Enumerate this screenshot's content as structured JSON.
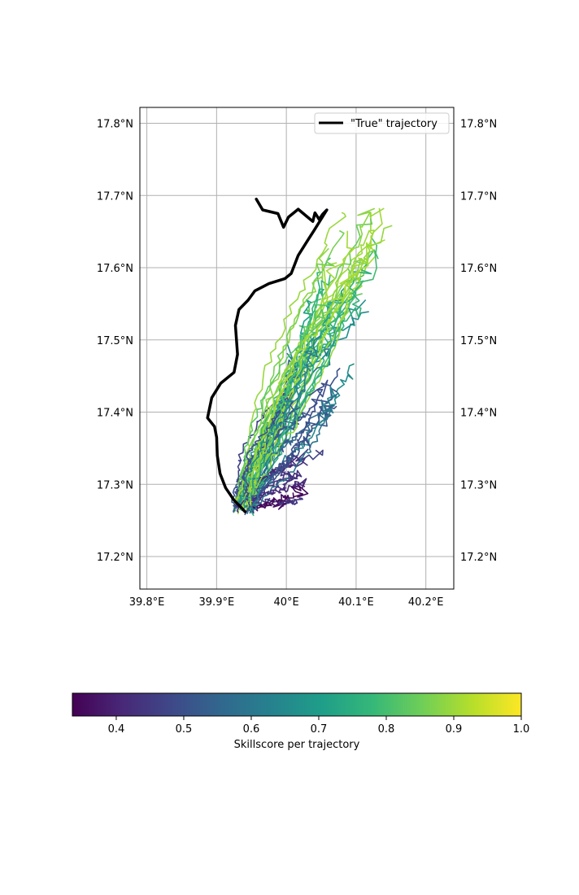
{
  "chart_data": {
    "type": "line",
    "title": "",
    "xlabel": "",
    "ylabel": "",
    "xlim": [
      39.79,
      40.24
    ],
    "ylim": [
      17.155,
      17.822
    ],
    "grid": true,
    "x_ticks": [
      {
        "value": 39.8,
        "label": "39.8°E"
      },
      {
        "value": 39.9,
        "label": "39.9°E"
      },
      {
        "value": 40.0,
        "label": "40°E"
      },
      {
        "value": 40.1,
        "label": "40.1°E"
      },
      {
        "value": 40.2,
        "label": "40.2°E"
      }
    ],
    "y_ticks": [
      {
        "value": 17.2,
        "label": "17.2°N"
      },
      {
        "value": 17.3,
        "label": "17.3°N"
      },
      {
        "value": 17.4,
        "label": "17.4°N"
      },
      {
        "value": 17.5,
        "label": "17.5°N"
      },
      {
        "value": 17.6,
        "label": "17.6°N"
      },
      {
        "value": 17.7,
        "label": "17.7°N"
      },
      {
        "value": 17.8,
        "label": "17.8°N"
      }
    ],
    "legend": {
      "position": "top-right",
      "entries": [
        "\"True\" trajectory"
      ]
    },
    "true_trajectory": {
      "name": "\"True\" trajectory",
      "color": "#000000",
      "points": [
        [
          39.941,
          17.262
        ],
        [
          39.925,
          17.278
        ],
        [
          39.913,
          17.295
        ],
        [
          39.905,
          17.315
        ],
        [
          39.901,
          17.34
        ],
        [
          39.9,
          17.365
        ],
        [
          39.897,
          17.38
        ],
        [
          39.887,
          17.392
        ],
        [
          39.893,
          17.42
        ],
        [
          39.906,
          17.44
        ],
        [
          39.925,
          17.455
        ],
        [
          39.93,
          17.48
        ],
        [
          39.927,
          17.52
        ],
        [
          39.932,
          17.542
        ],
        [
          39.945,
          17.555
        ],
        [
          39.955,
          17.568
        ],
        [
          39.975,
          17.578
        ],
        [
          39.998,
          17.585
        ],
        [
          40.007,
          17.592
        ],
        [
          40.017,
          17.617
        ],
        [
          40.03,
          17.637
        ],
        [
          40.04,
          17.652
        ],
        [
          40.058,
          17.68
        ],
        [
          40.052,
          17.674
        ],
        [
          40.047,
          17.667
        ],
        [
          40.041,
          17.676
        ],
        [
          40.038,
          17.664
        ],
        [
          40.028,
          17.672
        ],
        [
          40.017,
          17.681
        ],
        [
          40.003,
          17.67
        ],
        [
          39.996,
          17.656
        ],
        [
          39.988,
          17.675
        ],
        [
          39.966,
          17.68
        ],
        [
          39.957,
          17.695
        ]
      ]
    },
    "colorbar": {
      "label": "Skillscore per trajectory",
      "range": [
        0.335,
        1.0
      ],
      "ticks": [
        0.4,
        0.5,
        0.6,
        0.7,
        0.8,
        0.9,
        1.0
      ],
      "tick_labels": [
        "0.4",
        "0.5",
        "0.6",
        "0.7",
        "0.8",
        "0.9",
        "1.0"
      ],
      "colormap": "viridis"
    },
    "ensemble": {
      "start": [
        39.94,
        17.26
      ],
      "count": 70,
      "skillscore_range": [
        0.335,
        0.92
      ],
      "description_from_pixels": "Ensemble of simulated drift trajectories fanning north-east, colored by skillscore"
    },
    "colormap_stops": [
      "#440154",
      "#482878",
      "#3e4989",
      "#31688e",
      "#26828e",
      "#1f9e89",
      "#35b779",
      "#6ece58",
      "#b5de2b",
      "#fde725"
    ]
  }
}
